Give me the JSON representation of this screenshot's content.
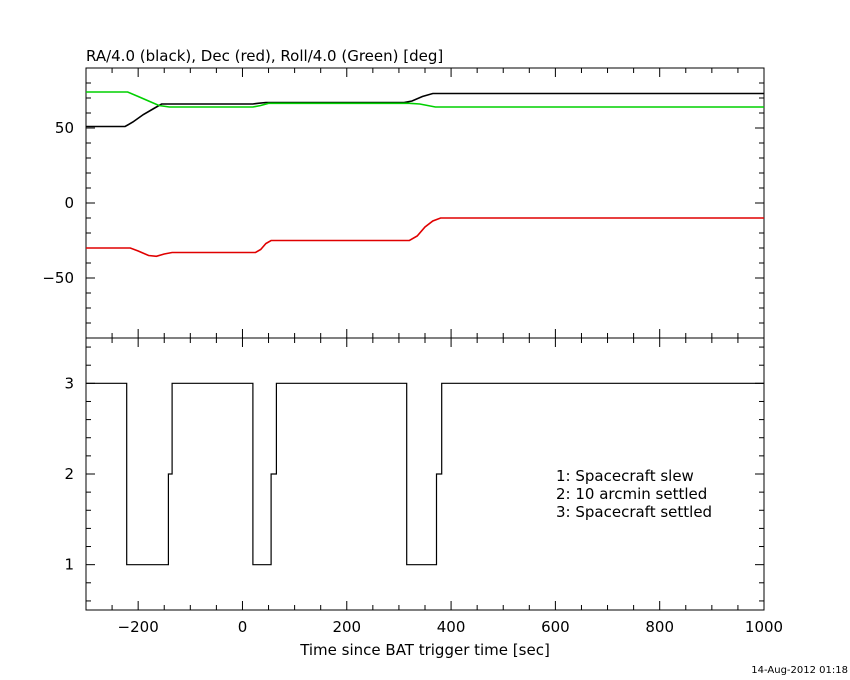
{
  "chart_data": [
    {
      "type": "line",
      "title": "RA/4.0 (black), Dec (red), Roll/4.0 (Green) [deg]",
      "xlim": [
        -300,
        1000
      ],
      "ylim": [
        -90,
        90
      ],
      "x_ticks": [
        -200,
        0,
        200,
        400,
        600,
        800,
        1000
      ],
      "y_ticks": [
        -50,
        0,
        50
      ],
      "y_tick_labels": [
        "−50",
        "0",
        "50"
      ],
      "series": [
        {
          "color": "#000000",
          "points": [
            [
              -300,
              51
            ],
            [
              -225,
              51
            ],
            [
              -210,
              54
            ],
            [
              -190,
              59
            ],
            [
              -170,
              63
            ],
            [
              -155,
              66
            ],
            [
              -140,
              66
            ],
            [
              20,
              66
            ],
            [
              30,
              66.5
            ],
            [
              45,
              67
            ],
            [
              310,
              67
            ],
            [
              325,
              68
            ],
            [
              345,
              71
            ],
            [
              365,
              73
            ],
            [
              380,
              73
            ],
            [
              1000,
              73
            ]
          ]
        },
        {
          "color": "#e00000",
          "points": [
            [
              -300,
              -30
            ],
            [
              -215,
              -30
            ],
            [
              -200,
              -32
            ],
            [
              -180,
              -35
            ],
            [
              -165,
              -35.5
            ],
            [
              -150,
              -34
            ],
            [
              -135,
              -33
            ],
            [
              25,
              -33
            ],
            [
              35,
              -31
            ],
            [
              45,
              -27
            ],
            [
              55,
              -25
            ],
            [
              320,
              -25
            ],
            [
              335,
              -22
            ],
            [
              350,
              -16
            ],
            [
              365,
              -12
            ],
            [
              380,
              -10
            ],
            [
              1000,
              -10
            ]
          ]
        },
        {
          "color": "#00d000",
          "points": [
            [
              -300,
              74
            ],
            [
              -220,
              74
            ],
            [
              -200,
              71
            ],
            [
              -180,
              68
            ],
            [
              -160,
              65
            ],
            [
              -140,
              64
            ],
            [
              20,
              64
            ],
            [
              35,
              65
            ],
            [
              50,
              66.5
            ],
            [
              320,
              66.5
            ],
            [
              340,
              66
            ],
            [
              355,
              65
            ],
            [
              370,
              64
            ],
            [
              1000,
              64
            ]
          ]
        }
      ]
    },
    {
      "type": "line",
      "xlabel": "Time since BAT trigger time [sec]",
      "xlim": [
        -300,
        1000
      ],
      "ylim": [
        0.5,
        3.5
      ],
      "x_ticks": [
        -200,
        0,
        200,
        400,
        600,
        800,
        1000
      ],
      "x_tick_labels": [
        "−200",
        "0",
        "200",
        "400",
        "600",
        "800",
        "1000"
      ],
      "y_ticks": [
        1,
        2,
        3
      ],
      "series": [
        {
          "color": "#000000",
          "step": true,
          "points": [
            [
              -300,
              3
            ],
            [
              -222,
              3
            ],
            [
              -222,
              1
            ],
            [
              -142,
              1
            ],
            [
              -142,
              2
            ],
            [
              -135,
              2
            ],
            [
              -135,
              3
            ],
            [
              20,
              3
            ],
            [
              20,
              1
            ],
            [
              55,
              1
            ],
            [
              55,
              2
            ],
            [
              65,
              2
            ],
            [
              65,
              3
            ],
            [
              315,
              3
            ],
            [
              315,
              1
            ],
            [
              372,
              1
            ],
            [
              372,
              2
            ],
            [
              382,
              2
            ],
            [
              382,
              3
            ],
            [
              1000,
              3
            ]
          ]
        }
      ],
      "legend_lines": [
        "1: Spacecraft slew",
        "2: 10 arcmin settled",
        "3: Spacecraft settled"
      ]
    }
  ],
  "footer": {
    "timestamp": "14-Aug-2012 01:18"
  }
}
